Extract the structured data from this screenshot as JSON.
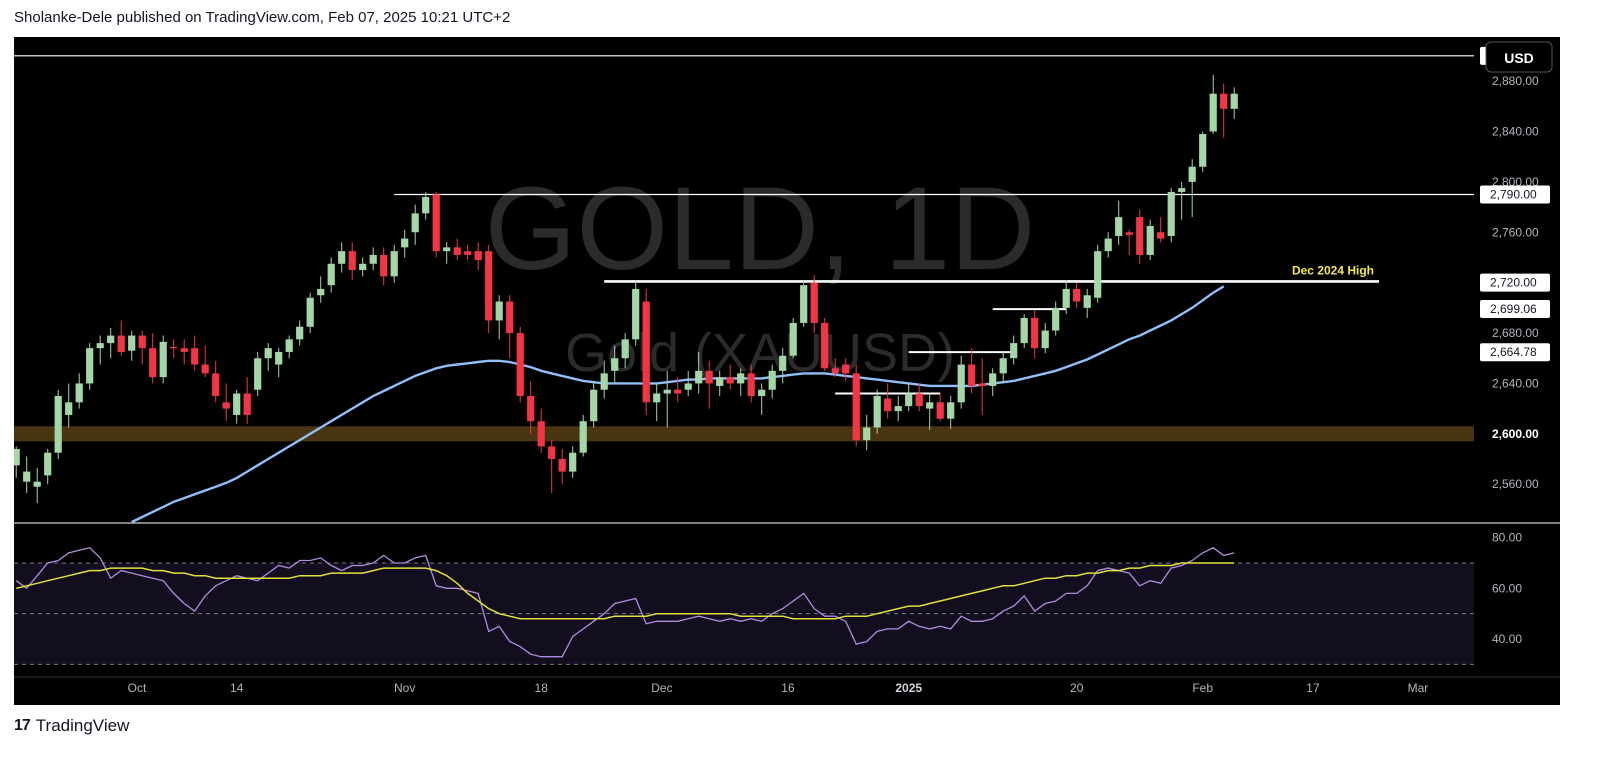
{
  "header": {
    "publish_text": "Sholanke-Dele published on TradingView.com, Feb 07, 2025 10:21 UTC+2"
  },
  "footer": {
    "brand": "TradingView"
  },
  "currency_button": "USD",
  "watermark": {
    "main": "GOLD, 1D",
    "sub": "Gold (XAUUSD)"
  },
  "colors": {
    "up": "#a5d6a7",
    "down": "#f23645",
    "ma": "#90bff9",
    "rsi": "#b38ce0",
    "rsi_ma": "#e4e03a",
    "support_zone": "#4a3512",
    "annotation": "#f7e84a"
  },
  "chart_data": {
    "type": "candlestick",
    "symbol": "Gold (XAUUSD)",
    "interval": "1D",
    "x_ticks": [
      "Oct",
      "14",
      "Nov",
      "18",
      "Dec",
      "16",
      "2025",
      "20",
      "Feb",
      "17",
      "Mar"
    ],
    "y_ticks": [
      "2,560.00",
      "2,600.00",
      "2,640.00",
      "2,680.00",
      "2,720.00",
      "2,760.00",
      "2,800.00",
      "2,840.00",
      "2,880.00"
    ],
    "y_range": [
      2530,
      2915
    ],
    "price_labels": [
      "2,900.06",
      "2,790.00",
      "2,720.00",
      "2,699.06",
      "2,664.78",
      "2,600.00"
    ],
    "horizontal_lines": [
      2900.06,
      2790.0
    ],
    "support_zone": [
      2594,
      2606
    ],
    "dec_2024_high_line": 2721,
    "dec_2024_high_label": "Dec 2024 High",
    "short_levels": [
      2699,
      2664.8,
      2632,
      2697
    ],
    "candles": [
      {
        "o": 2575,
        "h": 2590,
        "l": 2565,
        "c": 2588
      },
      {
        "o": 2562,
        "h": 2582,
        "l": 2553,
        "c": 2570
      },
      {
        "o": 2558,
        "h": 2573,
        "l": 2545,
        "c": 2562
      },
      {
        "o": 2567,
        "h": 2588,
        "l": 2560,
        "c": 2585
      },
      {
        "o": 2585,
        "h": 2635,
        "l": 2580,
        "c": 2630
      },
      {
        "o": 2615,
        "h": 2640,
        "l": 2605,
        "c": 2625
      },
      {
        "o": 2625,
        "h": 2648,
        "l": 2620,
        "c": 2640
      },
      {
        "o": 2640,
        "h": 2672,
        "l": 2635,
        "c": 2668
      },
      {
        "o": 2668,
        "h": 2678,
        "l": 2655,
        "c": 2672
      },
      {
        "o": 2672,
        "h": 2684,
        "l": 2660,
        "c": 2678
      },
      {
        "o": 2678,
        "h": 2690,
        "l": 2662,
        "c": 2665
      },
      {
        "o": 2666,
        "h": 2682,
        "l": 2658,
        "c": 2678
      },
      {
        "o": 2678,
        "h": 2682,
        "l": 2655,
        "c": 2668
      },
      {
        "o": 2668,
        "h": 2680,
        "l": 2640,
        "c": 2645
      },
      {
        "o": 2645,
        "h": 2678,
        "l": 2640,
        "c": 2673
      },
      {
        "o": 2669,
        "h": 2675,
        "l": 2660,
        "c": 2668
      },
      {
        "o": 2668,
        "h": 2675,
        "l": 2655,
        "c": 2665
      },
      {
        "o": 2668,
        "h": 2678,
        "l": 2650,
        "c": 2655
      },
      {
        "o": 2655,
        "h": 2670,
        "l": 2645,
        "c": 2648
      },
      {
        "o": 2648,
        "h": 2658,
        "l": 2625,
        "c": 2630
      },
      {
        "o": 2625,
        "h": 2640,
        "l": 2610,
        "c": 2620
      },
      {
        "o": 2615,
        "h": 2635,
        "l": 2608,
        "c": 2632
      },
      {
        "o": 2632,
        "h": 2645,
        "l": 2608,
        "c": 2615
      },
      {
        "o": 2635,
        "h": 2665,
        "l": 2630,
        "c": 2660
      },
      {
        "o": 2660,
        "h": 2672,
        "l": 2650,
        "c": 2668
      },
      {
        "o": 2655,
        "h": 2668,
        "l": 2645,
        "c": 2665
      },
      {
        "o": 2665,
        "h": 2678,
        "l": 2660,
        "c": 2675
      },
      {
        "o": 2675,
        "h": 2690,
        "l": 2670,
        "c": 2685
      },
      {
        "o": 2685,
        "h": 2712,
        "l": 2680,
        "c": 2708
      },
      {
        "o": 2710,
        "h": 2725,
        "l": 2704,
        "c": 2715
      },
      {
        "o": 2718,
        "h": 2740,
        "l": 2712,
        "c": 2735
      },
      {
        "o": 2735,
        "h": 2752,
        "l": 2728,
        "c": 2745
      },
      {
        "o": 2745,
        "h": 2752,
        "l": 2722,
        "c": 2730
      },
      {
        "o": 2730,
        "h": 2740,
        "l": 2725,
        "c": 2735
      },
      {
        "o": 2735,
        "h": 2748,
        "l": 2730,
        "c": 2742
      },
      {
        "o": 2742,
        "h": 2748,
        "l": 2718,
        "c": 2725
      },
      {
        "o": 2725,
        "h": 2750,
        "l": 2720,
        "c": 2745
      },
      {
        "o": 2748,
        "h": 2762,
        "l": 2740,
        "c": 2755
      },
      {
        "o": 2760,
        "h": 2782,
        "l": 2750,
        "c": 2775
      },
      {
        "o": 2775,
        "h": 2792,
        "l": 2770,
        "c": 2788
      },
      {
        "o": 2790,
        "h": 2792,
        "l": 2740,
        "c": 2745
      },
      {
        "o": 2745,
        "h": 2752,
        "l": 2735,
        "c": 2748
      },
      {
        "o": 2748,
        "h": 2755,
        "l": 2738,
        "c": 2742
      },
      {
        "o": 2745,
        "h": 2750,
        "l": 2738,
        "c": 2742
      },
      {
        "o": 2745,
        "h": 2752,
        "l": 2730,
        "c": 2738
      },
      {
        "o": 2745,
        "h": 2750,
        "l": 2680,
        "c": 2690
      },
      {
        "o": 2690,
        "h": 2710,
        "l": 2675,
        "c": 2705
      },
      {
        "o": 2705,
        "h": 2710,
        "l": 2660,
        "c": 2680
      },
      {
        "o": 2680,
        "h": 2685,
        "l": 2625,
        "c": 2630
      },
      {
        "o": 2630,
        "h": 2642,
        "l": 2600,
        "c": 2610
      },
      {
        "o": 2610,
        "h": 2620,
        "l": 2585,
        "c": 2590
      },
      {
        "o": 2590,
        "h": 2595,
        "l": 2553,
        "c": 2580
      },
      {
        "o": 2580,
        "h": 2588,
        "l": 2560,
        "c": 2570
      },
      {
        "o": 2570,
        "h": 2590,
        "l": 2565,
        "c": 2585
      },
      {
        "o": 2585,
        "h": 2615,
        "l": 2582,
        "c": 2610
      },
      {
        "o": 2610,
        "h": 2642,
        "l": 2605,
        "c": 2635
      },
      {
        "o": 2635,
        "h": 2658,
        "l": 2628,
        "c": 2648
      },
      {
        "o": 2650,
        "h": 2670,
        "l": 2640,
        "c": 2660
      },
      {
        "o": 2660,
        "h": 2680,
        "l": 2652,
        "c": 2675
      },
      {
        "o": 2675,
        "h": 2722,
        "l": 2670,
        "c": 2715
      },
      {
        "o": 2705,
        "h": 2715,
        "l": 2615,
        "c": 2625
      },
      {
        "o": 2625,
        "h": 2640,
        "l": 2610,
        "c": 2632
      },
      {
        "o": 2632,
        "h": 2650,
        "l": 2605,
        "c": 2635
      },
      {
        "o": 2635,
        "h": 2645,
        "l": 2625,
        "c": 2632
      },
      {
        "o": 2635,
        "h": 2650,
        "l": 2630,
        "c": 2640
      },
      {
        "o": 2640,
        "h": 2665,
        "l": 2632,
        "c": 2650
      },
      {
        "o": 2650,
        "h": 2658,
        "l": 2620,
        "c": 2640
      },
      {
        "o": 2638,
        "h": 2650,
        "l": 2630,
        "c": 2645
      },
      {
        "o": 2645,
        "h": 2655,
        "l": 2635,
        "c": 2640
      },
      {
        "o": 2640,
        "h": 2652,
        "l": 2630,
        "c": 2648
      },
      {
        "o": 2648,
        "h": 2655,
        "l": 2625,
        "c": 2630
      },
      {
        "o": 2630,
        "h": 2640,
        "l": 2615,
        "c": 2635
      },
      {
        "o": 2635,
        "h": 2655,
        "l": 2628,
        "c": 2650
      },
      {
        "o": 2650,
        "h": 2668,
        "l": 2640,
        "c": 2662
      },
      {
        "o": 2662,
        "h": 2692,
        "l": 2660,
        "c": 2688
      },
      {
        "o": 2688,
        "h": 2722,
        "l": 2685,
        "c": 2718
      },
      {
        "o": 2720,
        "h": 2726,
        "l": 2680,
        "c": 2688
      },
      {
        "o": 2688,
        "h": 2692,
        "l": 2650,
        "c": 2652
      },
      {
        "o": 2652,
        "h": 2660,
        "l": 2645,
        "c": 2648
      },
      {
        "o": 2655,
        "h": 2660,
        "l": 2642,
        "c": 2648
      },
      {
        "o": 2648,
        "h": 2655,
        "l": 2590,
        "c": 2595
      },
      {
        "o": 2595,
        "h": 2615,
        "l": 2587,
        "c": 2605
      },
      {
        "o": 2605,
        "h": 2635,
        "l": 2600,
        "c": 2630
      },
      {
        "o": 2628,
        "h": 2640,
        "l": 2612,
        "c": 2618
      },
      {
        "o": 2618,
        "h": 2630,
        "l": 2610,
        "c": 2622
      },
      {
        "o": 2622,
        "h": 2640,
        "l": 2618,
        "c": 2632
      },
      {
        "o": 2632,
        "h": 2640,
        "l": 2618,
        "c": 2622
      },
      {
        "o": 2620,
        "h": 2632,
        "l": 2603,
        "c": 2625
      },
      {
        "o": 2625,
        "h": 2632,
        "l": 2610,
        "c": 2612
      },
      {
        "o": 2612,
        "h": 2630,
        "l": 2604,
        "c": 2625
      },
      {
        "o": 2625,
        "h": 2662,
        "l": 2620,
        "c": 2655
      },
      {
        "o": 2655,
        "h": 2668,
        "l": 2632,
        "c": 2638
      },
      {
        "o": 2640,
        "h": 2660,
        "l": 2615,
        "c": 2638
      },
      {
        "o": 2638,
        "h": 2652,
        "l": 2630,
        "c": 2648
      },
      {
        "o": 2648,
        "h": 2665,
        "l": 2640,
        "c": 2660
      },
      {
        "o": 2660,
        "h": 2678,
        "l": 2655,
        "c": 2672
      },
      {
        "o": 2672,
        "h": 2695,
        "l": 2668,
        "c": 2692
      },
      {
        "o": 2692,
        "h": 2698,
        "l": 2660,
        "c": 2668
      },
      {
        "o": 2668,
        "h": 2688,
        "l": 2664,
        "c": 2682
      },
      {
        "o": 2682,
        "h": 2705,
        "l": 2678,
        "c": 2700
      },
      {
        "o": 2700,
        "h": 2722,
        "l": 2695,
        "c": 2715
      },
      {
        "o": 2715,
        "h": 2720,
        "l": 2700,
        "c": 2705
      },
      {
        "o": 2700,
        "h": 2715,
        "l": 2692,
        "c": 2710
      },
      {
        "o": 2708,
        "h": 2750,
        "l": 2704,
        "c": 2745
      },
      {
        "o": 2745,
        "h": 2760,
        "l": 2740,
        "c": 2755
      },
      {
        "o": 2757,
        "h": 2785,
        "l": 2750,
        "c": 2772
      },
      {
        "o": 2760,
        "h": 2762,
        "l": 2742,
        "c": 2758
      },
      {
        "o": 2772,
        "h": 2778,
        "l": 2735,
        "c": 2742
      },
      {
        "o": 2742,
        "h": 2770,
        "l": 2738,
        "c": 2765
      },
      {
        "o": 2760,
        "h": 2772,
        "l": 2752,
        "c": 2755
      },
      {
        "o": 2757,
        "h": 2795,
        "l": 2752,
        "c": 2792
      },
      {
        "o": 2792,
        "h": 2800,
        "l": 2770,
        "c": 2795
      },
      {
        "o": 2800,
        "h": 2818,
        "l": 2772,
        "c": 2812
      },
      {
        "o": 2812,
        "h": 2840,
        "l": 2808,
        "c": 2838
      },
      {
        "o": 2840,
        "h": 2885,
        "l": 2838,
        "c": 2870
      },
      {
        "o": 2870,
        "h": 2878,
        "l": 2835,
        "c": 2858
      },
      {
        "o": 2858,
        "h": 2875,
        "l": 2850,
        "c": 2870
      }
    ],
    "ma_values": [
      2486,
      2490,
      2494,
      2498,
      2502,
      2506,
      2510,
      2514,
      2518,
      2522,
      2526,
      2530,
      2534,
      2538,
      2542,
      2546,
      2549,
      2552,
      2555,
      2558,
      2561,
      2565,
      2570,
      2575,
      2580,
      2585,
      2590,
      2595,
      2600,
      2605,
      2610,
      2615,
      2620,
      2625,
      2630,
      2634,
      2638,
      2642,
      2646,
      2649,
      2652,
      2654,
      2655,
      2656,
      2657,
      2658,
      2658,
      2657,
      2655,
      2653,
      2650,
      2648,
      2646,
      2644,
      2642,
      2641,
      2640,
      2640,
      2640,
      2640,
      2640,
      2640,
      2641,
      2642,
      2643,
      2643,
      2644,
      2644,
      2644,
      2644,
      2644,
      2644,
      2645,
      2646,
      2647,
      2648,
      2648,
      2648,
      2647,
      2646,
      2645,
      2644,
      2643,
      2642,
      2641,
      2640,
      2639,
      2638,
      2638,
      2638,
      2638,
      2638,
      2639,
      2640,
      2641,
      2642,
      2644,
      2646,
      2648,
      2650,
      2653,
      2656,
      2659,
      2663,
      2667,
      2671,
      2675,
      2678,
      2682,
      2686,
      2690,
      2695,
      2700,
      2706,
      2712,
      2717
    ],
    "rsi": {
      "y_ticks": [
        "80.00",
        "60.00",
        "40.00"
      ],
      "y_range": [
        25,
        85
      ],
      "levels": [
        70,
        50,
        30
      ],
      "values": [
        63,
        60,
        65,
        70,
        71,
        74,
        75,
        76,
        72,
        64,
        67,
        66,
        65,
        64,
        63,
        58,
        54,
        51,
        57,
        61,
        63,
        65,
        64,
        63,
        66,
        69,
        68,
        71,
        71,
        72,
        69,
        67,
        69,
        69,
        70,
        73,
        70,
        70,
        72,
        73,
        61,
        60,
        60,
        59,
        58,
        43,
        45,
        39,
        37,
        34,
        33,
        33,
        33,
        41,
        44,
        47,
        50,
        54,
        55,
        56,
        46,
        47,
        47,
        47,
        48,
        49,
        48,
        47,
        48,
        47,
        48,
        47,
        50,
        52,
        55,
        58,
        52,
        49,
        49,
        47,
        38,
        39,
        43,
        44,
        44,
        47,
        45,
        44,
        45,
        44,
        49,
        47,
        47,
        48,
        51,
        53,
        57,
        51,
        54,
        55,
        58,
        58,
        61,
        67,
        68,
        67,
        66,
        61,
        63,
        62,
        68,
        69,
        71,
        74,
        76,
        73,
        74
      ],
      "ma_values": [
        60,
        61,
        62,
        63,
        64,
        65,
        66,
        67,
        67,
        68,
        68,
        68,
        68,
        67,
        67,
        66,
        66,
        65,
        65,
        64,
        64,
        64,
        64,
        64,
        64,
        64,
        64,
        65,
        65,
        65,
        66,
        66,
        66,
        66,
        67,
        68,
        68,
        68,
        68,
        68,
        67,
        65,
        62,
        58,
        55,
        52,
        50,
        49,
        48,
        48,
        48,
        48,
        48,
        48,
        48,
        48,
        48,
        49,
        49,
        49,
        49,
        50,
        50,
        50,
        50,
        50,
        50,
        50,
        50,
        49,
        49,
        49,
        49,
        49,
        48,
        48,
        48,
        48,
        48,
        49,
        49,
        49,
        50,
        51,
        52,
        53,
        53,
        54,
        55,
        56,
        57,
        58,
        59,
        60,
        61,
        61,
        62,
        63,
        64,
        64,
        65,
        65,
        66,
        66,
        67,
        67,
        68,
        68,
        69,
        69,
        69,
        70,
        70,
        70,
        70,
        70,
        70
      ]
    }
  }
}
